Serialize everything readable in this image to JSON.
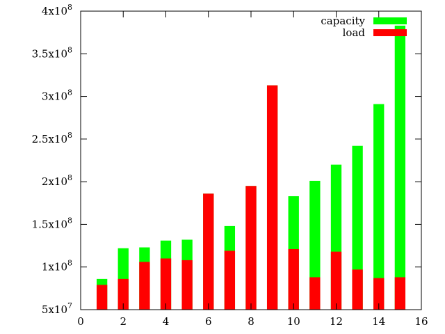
{
  "chart_data": {
    "type": "bar",
    "stacked": "overlay",
    "x": [
      1,
      2,
      3,
      4,
      5,
      6,
      7,
      8,
      9,
      10,
      11,
      12,
      13,
      14,
      15
    ],
    "series": [
      {
        "name": "capacity",
        "color": "#00ff00",
        "values": [
          86000000,
          122000000,
          123000000,
          131000000,
          132000000,
          186000000,
          148000000,
          195000000,
          313000000,
          183000000,
          201000000,
          220000000,
          242000000,
          291000000,
          383000000
        ]
      },
      {
        "name": "load",
        "color": "#ff0000",
        "values": [
          79000000,
          86000000,
          106000000,
          110000000,
          108000000,
          186000000,
          119000000,
          195000000,
          313000000,
          121000000,
          88000000,
          118000000,
          97000000,
          87000000,
          88000000
        ]
      }
    ],
    "xlim": [
      0,
      16
    ],
    "ylim": [
      50000000,
      400000000
    ],
    "xticks": [
      0,
      2,
      4,
      6,
      8,
      10,
      12,
      14,
      16
    ],
    "yticks": [
      {
        "value": 50000000,
        "mantissa": "5x10",
        "exp": "7"
      },
      {
        "value": 100000000,
        "mantissa": "1x10",
        "exp": "8"
      },
      {
        "value": 150000000,
        "mantissa": "1.5x10",
        "exp": "8"
      },
      {
        "value": 200000000,
        "mantissa": "2x10",
        "exp": "8"
      },
      {
        "value": 250000000,
        "mantissa": "2.5x10",
        "exp": "8"
      },
      {
        "value": 300000000,
        "mantissa": "3x10",
        "exp": "8"
      },
      {
        "value": 350000000,
        "mantissa": "3.5x10",
        "exp": "8"
      },
      {
        "value": 400000000,
        "mantissa": "4x10",
        "exp": "8"
      }
    ],
    "bar_width": 0.5,
    "grid": false,
    "legend_position": "top-right",
    "title": "",
    "xlabel": "",
    "ylabel": ""
  }
}
